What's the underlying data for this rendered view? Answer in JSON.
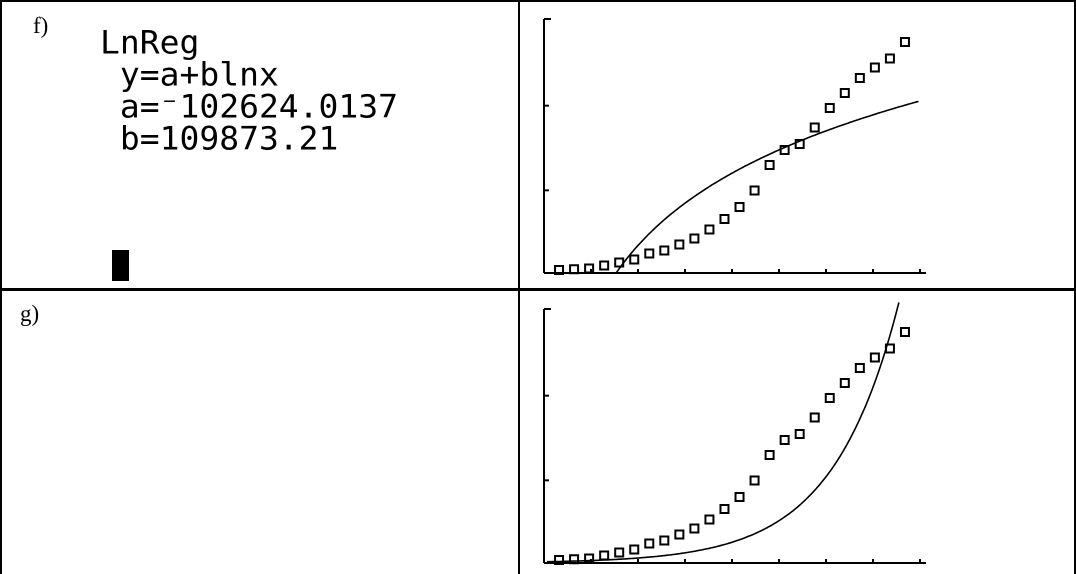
{
  "rows": [
    {
      "label": "f)",
      "calculator": {
        "lines": [
          "LnReg",
          " y=a+blnx",
          " a=⁻102624.0137",
          " b=109873.21"
        ]
      },
      "chart_data": {
        "type": "scatter",
        "title": "",
        "xlabel": "",
        "ylabel": "",
        "grid": false,
        "points": [
          [
            1,
            0.2
          ],
          [
            2,
            0.25
          ],
          [
            3,
            0.3
          ],
          [
            4,
            0.5
          ],
          [
            5,
            0.7
          ],
          [
            6,
            0.9
          ],
          [
            7,
            1.3
          ],
          [
            8,
            1.5
          ],
          [
            9,
            1.9
          ],
          [
            10,
            2.3
          ],
          [
            11,
            2.9
          ],
          [
            12,
            3.6
          ],
          [
            13,
            4.4
          ],
          [
            14,
            5.5
          ],
          [
            15,
            7.2
          ],
          [
            16,
            8.2
          ],
          [
            17,
            8.6
          ],
          [
            18,
            9.7
          ],
          [
            19,
            11.0
          ],
          [
            20,
            12.0
          ],
          [
            21,
            13.0
          ],
          [
            22,
            13.7
          ],
          [
            23,
            14.3
          ],
          [
            24,
            15.4
          ]
        ],
        "curve": {
          "equation": "y = a + b ln x",
          "a": -102624.0137,
          "b": 109873.21
        }
      }
    },
    {
      "label": "g)",
      "chart_data": {
        "type": "scatter",
        "title": "",
        "xlabel": "",
        "ylabel": "",
        "grid": false,
        "points": [
          [
            1,
            0.2
          ],
          [
            2,
            0.25
          ],
          [
            3,
            0.3
          ],
          [
            4,
            0.5
          ],
          [
            5,
            0.7
          ],
          [
            6,
            0.9
          ],
          [
            7,
            1.3
          ],
          [
            8,
            1.5
          ],
          [
            9,
            1.9
          ],
          [
            10,
            2.3
          ],
          [
            11,
            2.9
          ],
          [
            12,
            3.6
          ],
          [
            13,
            4.4
          ],
          [
            14,
            5.5
          ],
          [
            15,
            7.2
          ],
          [
            16,
            8.2
          ],
          [
            17,
            8.6
          ],
          [
            18,
            9.7
          ],
          [
            19,
            11.0
          ],
          [
            20,
            12.0
          ],
          [
            21,
            13.0
          ],
          [
            22,
            13.7
          ],
          [
            23,
            14.3
          ],
          [
            24,
            15.4
          ]
        ],
        "curve": {
          "type": "exponential"
        }
      }
    }
  ]
}
